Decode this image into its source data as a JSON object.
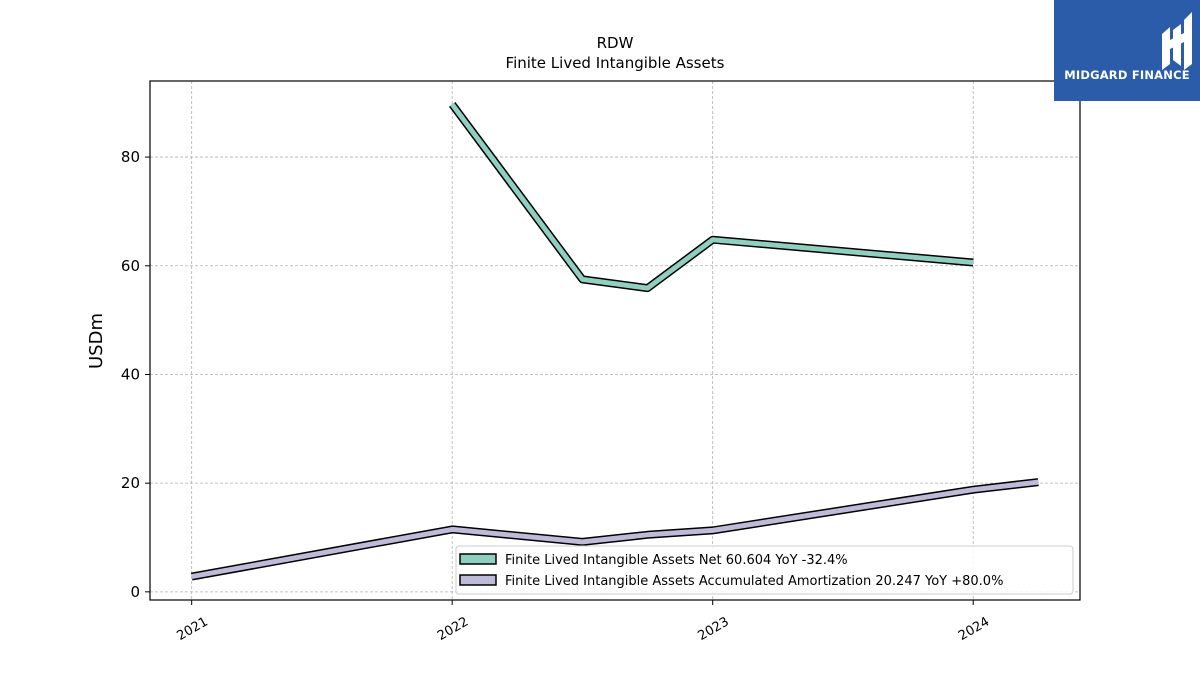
{
  "brand": {
    "name": "MIDGARD FINANCE",
    "bg_color": "#2a5caa"
  },
  "chart_data": {
    "type": "line",
    "title": "RDW",
    "subtitle": "Finite Lived Intangible Assets",
    "xlabel": "",
    "ylabel": "USDm",
    "x_ticks": [
      "2021",
      "2022",
      "2023",
      "2024"
    ],
    "y_ticks": [
      0,
      20,
      40,
      60,
      80
    ],
    "xlim": [
      2020.84,
      2024.41
    ],
    "ylim": [
      -1.5,
      94
    ],
    "grid": true,
    "legend_position": "lower-right",
    "series": [
      {
        "name": "Finite Lived Intangible Assets Net",
        "legend_label": "Finite Lived Intangible Assets Net  60.604 YoY -32.4%",
        "color": "#8ecfc0",
        "points": [
          {
            "x": 2022.0,
            "y": 89.7
          },
          {
            "x": 2022.5,
            "y": 57.5
          },
          {
            "x": 2022.75,
            "y": 55.9
          },
          {
            "x": 2023.0,
            "y": 64.8
          },
          {
            "x": 2024.0,
            "y": 60.6
          }
        ]
      },
      {
        "name": "Finite Lived Intangible Assets Accumulated Amortization",
        "legend_label": "Finite Lived Intangible Assets Accumulated Amortization  20.247 YoY +80.0%",
        "color": "#bebbd9",
        "points": [
          {
            "x": 2021.0,
            "y": 2.8
          },
          {
            "x": 2022.0,
            "y": 11.5
          },
          {
            "x": 2022.5,
            "y": 9.2
          },
          {
            "x": 2022.75,
            "y": 10.5
          },
          {
            "x": 2023.0,
            "y": 11.3
          },
          {
            "x": 2024.0,
            "y": 18.8
          },
          {
            "x": 2024.25,
            "y": 20.2
          }
        ]
      }
    ]
  }
}
